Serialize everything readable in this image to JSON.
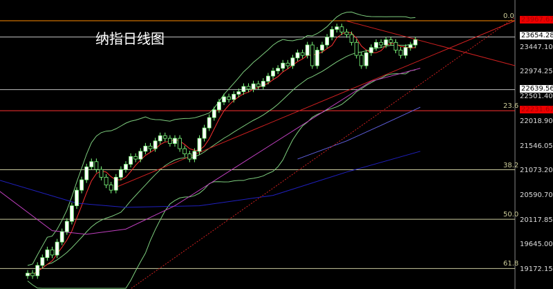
{
  "title": "纳指日线图",
  "chart_data": {
    "type": "candlestick",
    "title": "纳指日线图",
    "ylim": [
      19000,
      24050
    ],
    "y_ticks": [
      "23447.10",
      "22974.25",
      "22501.40",
      "22018.90",
      "21546.05",
      "21073.20",
      "20590.70",
      "20117.85",
      "19645.00",
      "19172.15"
    ],
    "y_tick_values": [
      23447.1,
      22974.25,
      22501.4,
      22018.9,
      21546.05,
      21073.2,
      20590.7,
      20117.85,
      19645.0,
      19172.15
    ],
    "price_labels": [
      {
        "text": "23967.67",
        "value": 23967.67,
        "style": "red",
        "line_color": "#ff8c00"
      },
      {
        "text": "23654.28",
        "value": 23654.28,
        "style": "box",
        "line_color": "#c0c0c0"
      },
      {
        "text": "22639.56",
        "value": 22639.56,
        "style": "box",
        "line_color": "#c0c0c0"
      },
      {
        "text": "22231.67",
        "value": 22231.67,
        "style": "red",
        "line_color": "#ff3030"
      }
    ],
    "fib_levels": [
      {
        "label": "0.0",
        "value": 23967.67
      },
      {
        "label": "23.6",
        "value": 22231.67
      },
      {
        "label": "38.2",
        "value": 21094
      },
      {
        "label": "50.0",
        "value": 20140
      },
      {
        "label": "61.8",
        "value": 19190
      }
    ],
    "closes": [
      19100,
      19050,
      19250,
      19400,
      19550,
      19450,
      19700,
      19900,
      20100,
      20400,
      20700,
      20900,
      21150,
      21250,
      21100,
      20950,
      20800,
      20700,
      20950,
      21100,
      21200,
      21350,
      21300,
      21450,
      21550,
      21500,
      21650,
      21750,
      21700,
      21600,
      21700,
      21500,
      21400,
      21300,
      21450,
      21700,
      21900,
      22100,
      22250,
      22400,
      22500,
      22450,
      22550,
      22600,
      22700,
      22650,
      22750,
      22700,
      22800,
      22900,
      23000,
      23050,
      23150,
      23100,
      23250,
      23350,
      23300,
      23500,
      23100,
      23400,
      23500,
      23650,
      23800,
      23850,
      23750,
      23700,
      23550,
      23300,
      23100,
      23350,
      23450,
      23550,
      23500,
      23600,
      23550,
      23400,
      23300,
      23450,
      23500,
      23600
    ],
    "ma_blue": [
      [
        -6,
        20900
      ],
      [
        10,
        20450
      ],
      [
        20,
        20370
      ],
      [
        35,
        20400
      ],
      [
        50,
        20600
      ],
      [
        65,
        21050
      ],
      [
        80,
        21450
      ]
    ],
    "ma_magenta": [
      [
        -6,
        20700
      ],
      [
        5,
        19920
      ],
      [
        12,
        19850
      ],
      [
        20,
        19950
      ],
      [
        30,
        20400
      ],
      [
        45,
        21300
      ],
      [
        60,
        22200
      ],
      [
        70,
        22800
      ],
      [
        80,
        23050
      ]
    ],
    "ma_violet_upper": [
      [
        55,
        21300
      ],
      [
        65,
        21650
      ],
      [
        72,
        21950
      ],
      [
        80,
        22300
      ]
    ],
    "colors": {
      "up": "#ffffff",
      "down": "#000000",
      "wick": "#7fff7f",
      "ma_fast": "#ff3030",
      "boll": "#7fcf7f",
      "ma_blue": "#2020c0",
      "ma_magenta": "#c040c0"
    }
  }
}
